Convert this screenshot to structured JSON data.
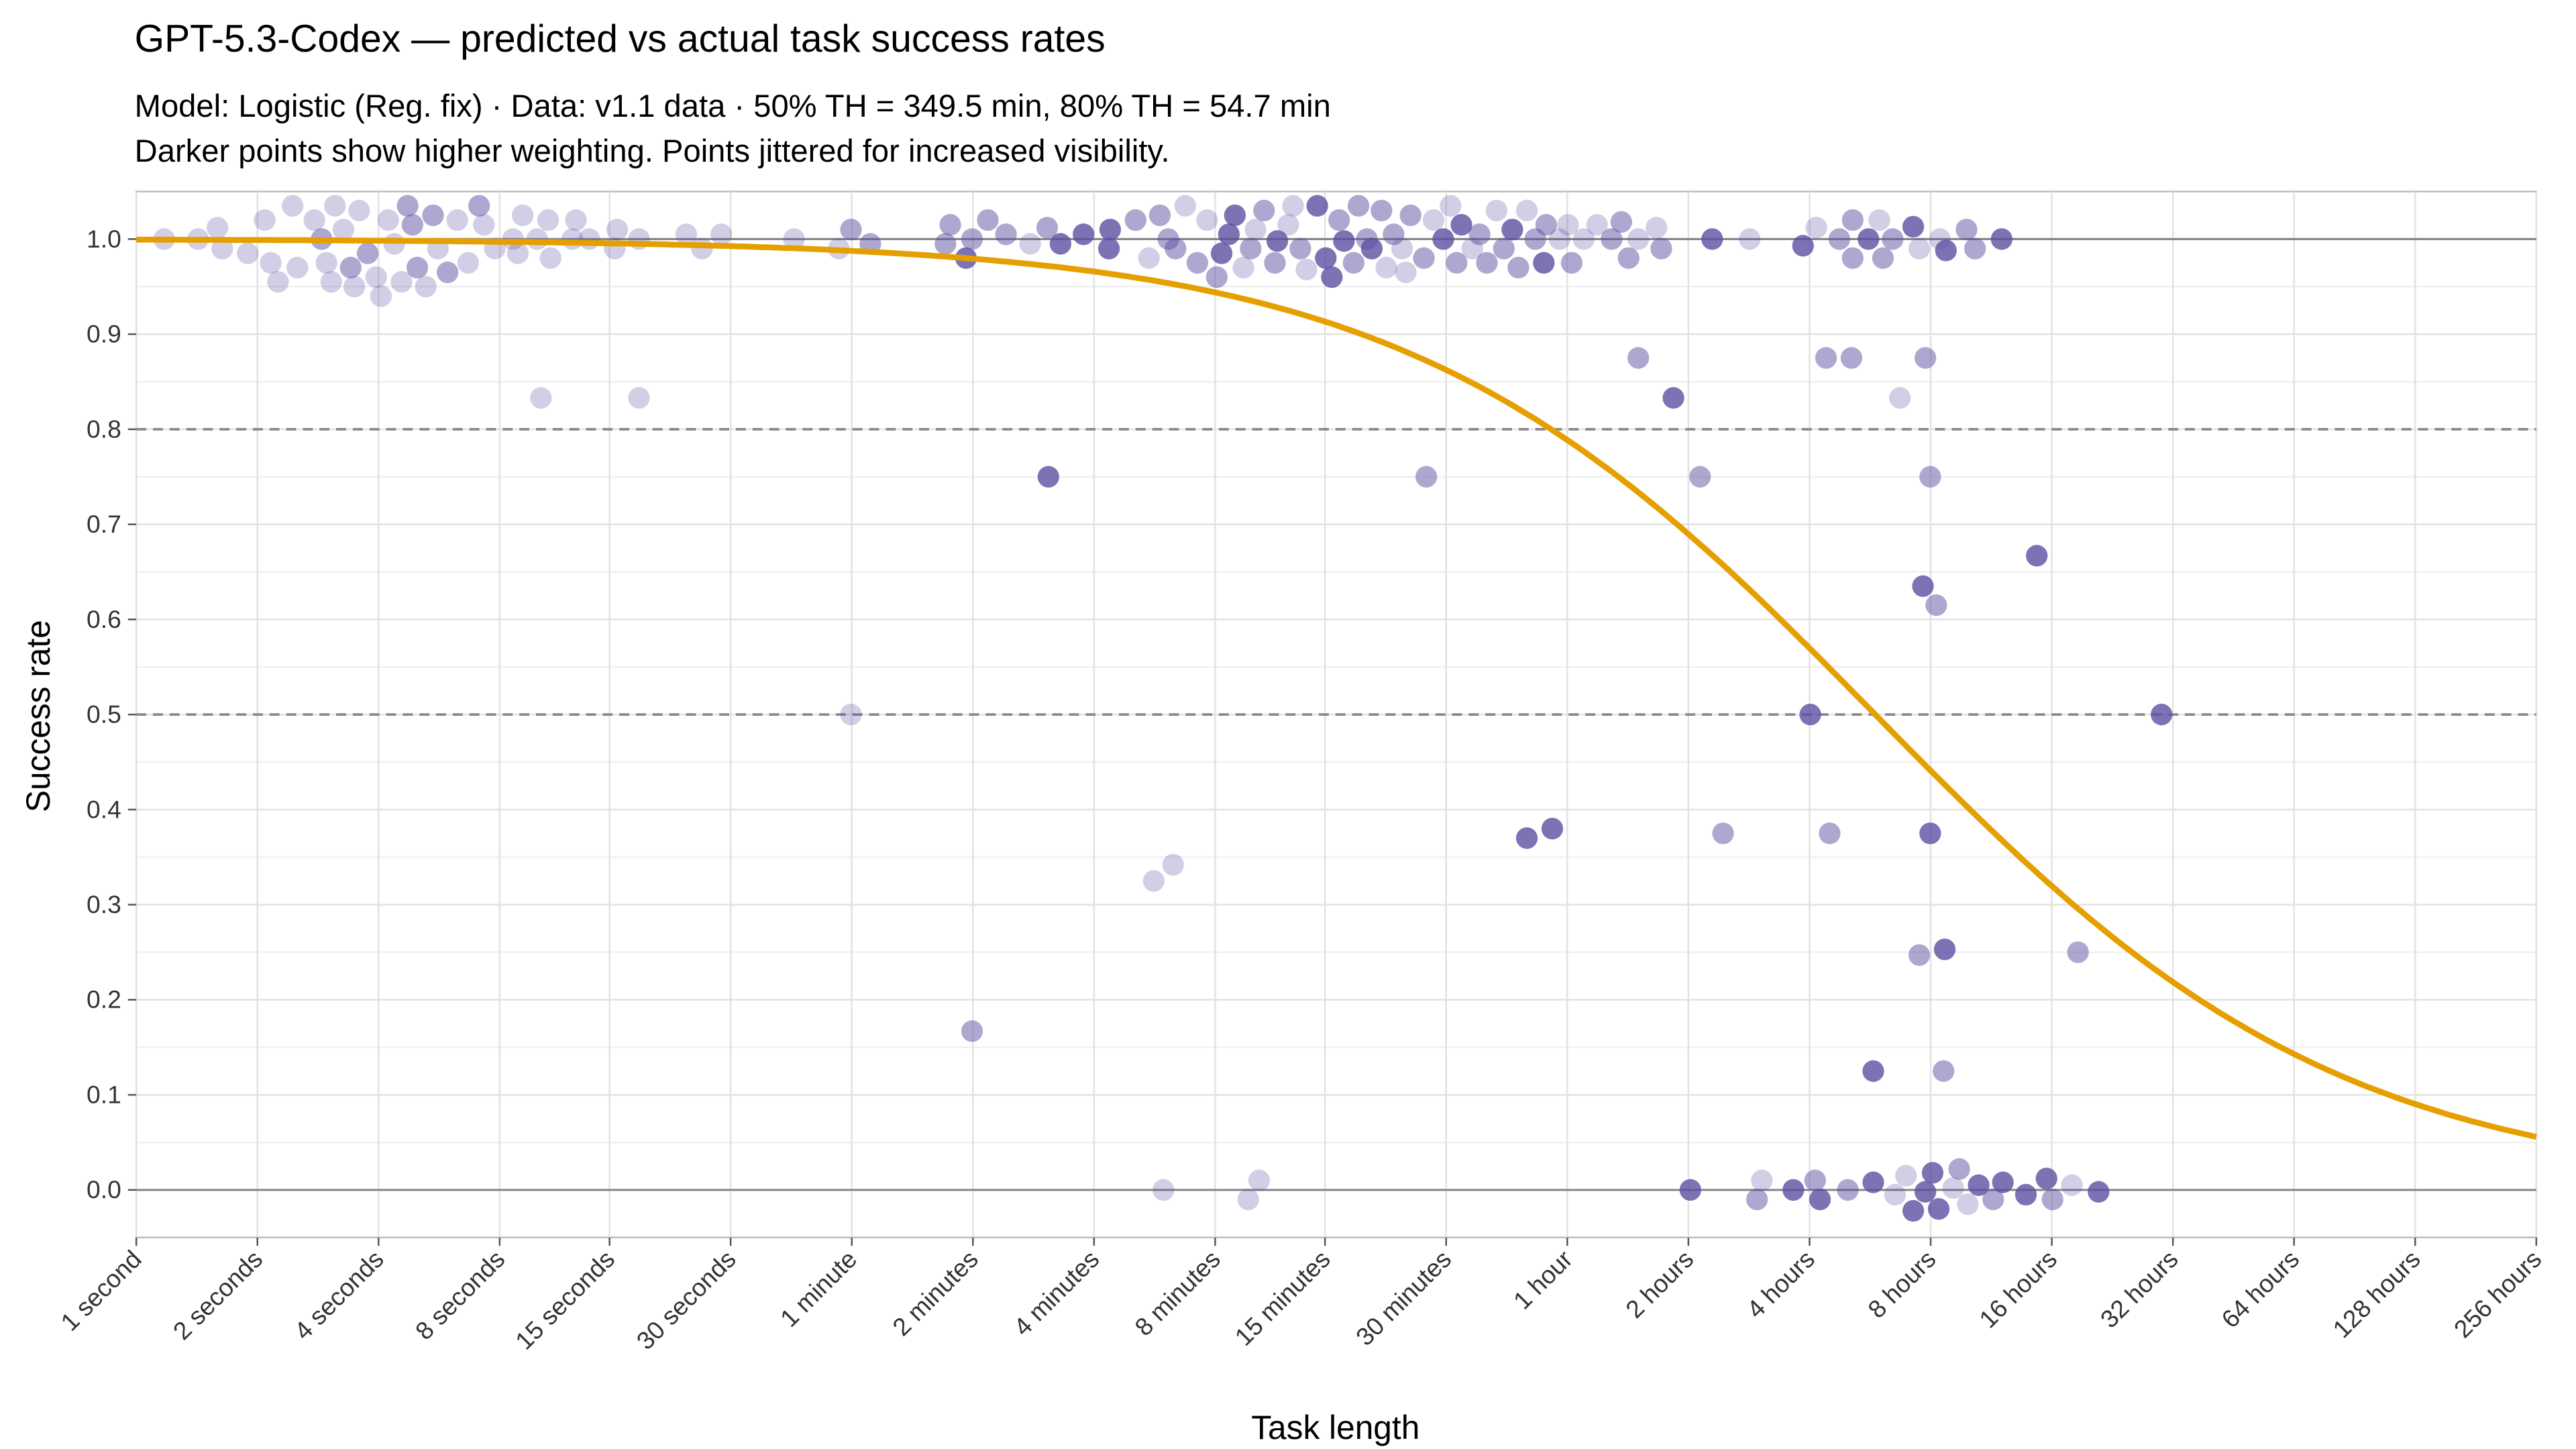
{
  "chart_data": {
    "type": "scatter",
    "title": "GPT-5.3-Codex — predicted vs actual task success rates",
    "subtitle_line1": "Model: Logistic (Reg. fix) · Data: v1.1 data · 50% TH = 349.5 min, 80% TH = 54.7 min",
    "subtitle_line2": "Darker points show higher weighting. Points jittered for increased visibility.",
    "xlabel": "Task length",
    "ylabel": "Success rate",
    "x_scale": "log2",
    "x_unit": "seconds",
    "xlim_seconds": [
      1,
      921600
    ],
    "ylim": [
      -0.05,
      1.05
    ],
    "x_ticks": [
      {
        "seconds": 1,
        "label": "1 second"
      },
      {
        "seconds": 2,
        "label": "2 seconds"
      },
      {
        "seconds": 4,
        "label": "4 seconds"
      },
      {
        "seconds": 8,
        "label": "8 seconds"
      },
      {
        "seconds": 15,
        "label": "15 seconds"
      },
      {
        "seconds": 30,
        "label": "30 seconds"
      },
      {
        "seconds": 60,
        "label": "1 minute"
      },
      {
        "seconds": 120,
        "label": "2 minutes"
      },
      {
        "seconds": 240,
        "label": "4 minutes"
      },
      {
        "seconds": 480,
        "label": "8 minutes"
      },
      {
        "seconds": 900,
        "label": "15 minutes"
      },
      {
        "seconds": 1800,
        "label": "30 minutes"
      },
      {
        "seconds": 3600,
        "label": "1 hour"
      },
      {
        "seconds": 7200,
        "label": "2 hours"
      },
      {
        "seconds": 14400,
        "label": "4 hours"
      },
      {
        "seconds": 28800,
        "label": "8 hours"
      },
      {
        "seconds": 57600,
        "label": "16 hours"
      },
      {
        "seconds": 115200,
        "label": "32 hours"
      },
      {
        "seconds": 230400,
        "label": "64 hours"
      },
      {
        "seconds": 460800,
        "label": "128 hours"
      },
      {
        "seconds": 921600,
        "label": "256 hours"
      }
    ],
    "y_ticks": [
      "0.0",
      "0.1",
      "0.2",
      "0.3",
      "0.4",
      "0.5",
      "0.6",
      "0.7",
      "0.8",
      "0.9",
      "1.0"
    ],
    "reference_lines": {
      "solid": [
        0,
        1
      ],
      "dashed": [
        0.5,
        0.8
      ]
    },
    "grid": true,
    "fit": {
      "model": "logistic",
      "th50_minutes": 349.5,
      "th80_minutes": 54.7,
      "color": "#E69F00"
    },
    "point_color": "#5E4FA2",
    "points": [
      [
        0.23,
        1.0,
        1
      ],
      [
        0.51,
        1.0,
        1
      ],
      [
        0.67,
        1.012,
        1
      ],
      [
        0.71,
        0.99,
        1
      ],
      [
        0.92,
        0.985,
        1
      ],
      [
        1.06,
        1.02,
        1
      ],
      [
        1.11,
        0.975,
        1
      ],
      [
        1.17,
        0.955,
        1
      ],
      [
        1.29,
        1.035,
        1
      ],
      [
        1.33,
        0.97,
        1
      ],
      [
        1.47,
        1.02,
        1
      ],
      [
        1.53,
        1.0,
        2
      ],
      [
        1.57,
        0.975,
        1
      ],
      [
        1.61,
        0.955,
        1
      ],
      [
        1.64,
        1.035,
        1
      ],
      [
        1.71,
        1.01,
        1
      ],
      [
        1.77,
        0.97,
        2
      ],
      [
        1.8,
        0.95,
        1
      ],
      [
        1.84,
        1.03,
        1
      ],
      [
        1.91,
        0.985,
        2
      ],
      [
        1.98,
        0.96,
        1
      ],
      [
        2.02,
        0.94,
        1
      ],
      [
        2.08,
        1.02,
        1
      ],
      [
        2.13,
        0.995,
        1
      ],
      [
        2.19,
        0.955,
        1
      ],
      [
        2.24,
        1.035,
        2
      ],
      [
        2.28,
        1.015,
        2
      ],
      [
        2.32,
        0.97,
        2
      ],
      [
        2.39,
        0.95,
        1
      ],
      [
        2.45,
        1.025,
        2
      ],
      [
        2.49,
        0.99,
        1
      ],
      [
        2.57,
        0.965,
        2
      ],
      [
        2.65,
        1.02,
        1
      ],
      [
        2.74,
        0.975,
        1
      ],
      [
        2.83,
        1.035,
        2
      ],
      [
        2.87,
        1.015,
        1
      ],
      [
        2.96,
        0.99,
        1
      ],
      [
        3.11,
        1.0,
        1
      ],
      [
        3.15,
        0.985,
        1
      ],
      [
        3.19,
        1.025,
        1
      ],
      [
        3.31,
        1.0,
        1
      ],
      [
        3.4,
        1.02,
        1
      ],
      [
        3.42,
        0.98,
        1
      ],
      [
        3.6,
        1.0,
        1
      ],
      [
        3.63,
        1.02,
        1
      ],
      [
        3.74,
        1.0,
        1
      ],
      [
        3.95,
        0.99,
        1
      ],
      [
        3.97,
        1.01,
        1
      ],
      [
        4.15,
        1.0,
        1
      ],
      [
        4.54,
        1.005,
        1
      ],
      [
        4.67,
        0.99,
        1
      ],
      [
        4.83,
        1.005,
        1
      ],
      [
        5.43,
        1.0,
        1
      ],
      [
        5.8,
        0.99,
        1
      ],
      [
        5.9,
        1.01,
        2
      ],
      [
        6.06,
        0.995,
        2
      ],
      [
        3.34,
        0.833,
        1
      ],
      [
        4.15,
        0.833,
        1
      ],
      [
        5.9,
        0.5,
        1
      ],
      [
        6.68,
        0.995,
        2
      ],
      [
        6.72,
        1.015,
        2
      ],
      [
        6.85,
        0.98,
        3
      ],
      [
        6.9,
        1.0,
        2
      ],
      [
        7.03,
        1.02,
        2
      ],
      [
        7.18,
        1.005,
        2
      ],
      [
        7.38,
        0.995,
        1
      ],
      [
        7.52,
        1.012,
        2
      ],
      [
        7.63,
        0.995,
        3
      ],
      [
        7.82,
        1.005,
        3
      ],
      [
        8.03,
        0.99,
        3
      ],
      [
        8.04,
        1.01,
        3
      ],
      [
        8.25,
        1.02,
        2
      ],
      [
        8.36,
        0.98,
        1
      ],
      [
        8.45,
        1.025,
        2
      ],
      [
        8.52,
        1.0,
        2
      ],
      [
        8.58,
        0.99,
        2
      ],
      [
        8.66,
        1.035,
        1
      ],
      [
        8.76,
        0.975,
        2
      ],
      [
        8.84,
        1.02,
        1
      ],
      [
        8.92,
        0.96,
        2
      ],
      [
        8.96,
        0.985,
        3
      ],
      [
        9.02,
        1.005,
        3
      ],
      [
        9.07,
        1.025,
        3
      ],
      [
        9.14,
        0.97,
        1
      ],
      [
        9.2,
        0.99,
        2
      ],
      [
        9.24,
        1.01,
        1
      ],
      [
        9.31,
        1.03,
        2
      ],
      [
        9.4,
        0.975,
        2
      ],
      [
        9.42,
        0.998,
        3
      ],
      [
        9.51,
        1.015,
        1
      ],
      [
        9.55,
        1.035,
        1
      ],
      [
        9.61,
        0.99,
        2
      ],
      [
        9.66,
        0.968,
        1
      ],
      [
        9.75,
        1.035,
        3
      ],
      [
        9.82,
        0.98,
        3
      ],
      [
        9.87,
        0.96,
        3
      ],
      [
        9.93,
        1.02,
        2
      ],
      [
        9.97,
        0.998,
        3
      ],
      [
        10.05,
        0.975,
        2
      ],
      [
        10.09,
        1.035,
        2
      ],
      [
        10.16,
        1.0,
        2
      ],
      [
        10.2,
        0.99,
        3
      ],
      [
        10.28,
        1.03,
        2
      ],
      [
        10.32,
        0.97,
        1
      ],
      [
        10.38,
        1.005,
        2
      ],
      [
        10.45,
        0.99,
        1
      ],
      [
        10.48,
        0.965,
        1
      ],
      [
        10.52,
        1.025,
        2
      ],
      [
        10.63,
        0.98,
        2
      ],
      [
        10.71,
        1.02,
        1
      ],
      [
        10.79,
        1.0,
        3
      ],
      [
        10.85,
        1.035,
        1
      ],
      [
        10.9,
        0.975,
        2
      ],
      [
        10.94,
        1.015,
        3
      ],
      [
        11.03,
        0.99,
        1
      ],
      [
        11.09,
        1.005,
        2
      ],
      [
        11.15,
        0.975,
        2
      ],
      [
        11.23,
        1.03,
        1
      ],
      [
        11.29,
        0.99,
        2
      ],
      [
        11.36,
        1.01,
        3
      ],
      [
        11.41,
        0.97,
        2
      ],
      [
        11.48,
        1.03,
        1
      ],
      [
        11.55,
        1.0,
        2
      ],
      [
        11.62,
        0.975,
        3
      ],
      [
        11.64,
        1.015,
        2
      ],
      [
        11.75,
        1.0,
        1
      ],
      [
        11.82,
        1.015,
        1
      ],
      [
        11.85,
        0.975,
        2
      ],
      [
        11.95,
        1.0,
        1
      ],
      [
        12.06,
        1.015,
        1
      ],
      [
        12.18,
        1.0,
        2
      ],
      [
        12.26,
        1.018,
        2
      ],
      [
        12.32,
        0.98,
        2
      ],
      [
        12.4,
        1.0,
        1
      ],
      [
        12.55,
        1.012,
        1
      ],
      [
        12.59,
        0.99,
        2
      ],
      [
        13.01,
        1.0,
        3
      ],
      [
        13.32,
        1.0,
        1
      ],
      [
        6.9,
        0.167,
        2
      ],
      [
        7.53,
        0.75,
        3
      ],
      [
        8.4,
        0.325,
        1
      ],
      [
        8.56,
        0.342,
        1
      ],
      [
        8.48,
        0.0,
        1
      ],
      [
        9.18,
        -0.01,
        1
      ],
      [
        9.27,
        0.01,
        1
      ],
      [
        10.65,
        0.75,
        2
      ],
      [
        11.48,
        0.37,
        3
      ],
      [
        11.69,
        0.38,
        3
      ],
      [
        12.4,
        0.875,
        2
      ],
      [
        12.69,
        0.833,
        3
      ],
      [
        12.91,
        0.75,
        2
      ],
      [
        13.1,
        0.375,
        2
      ],
      [
        12.83,
        0.0,
        3
      ],
      [
        13.38,
        -0.01,
        2
      ],
      [
        13.42,
        0.01,
        1
      ],
      [
        13.68,
        0.0,
        3
      ],
      [
        13.76,
        0.993,
        3
      ],
      [
        13.82,
        0.5,
        3
      ],
      [
        13.86,
        0.01,
        2
      ],
      [
        13.87,
        1.012,
        1
      ],
      [
        13.9,
        -0.01,
        3
      ],
      [
        13.95,
        0.875,
        2
      ],
      [
        13.98,
        0.375,
        2
      ],
      [
        14.06,
        1.0,
        2
      ],
      [
        14.13,
        0.0,
        2
      ],
      [
        14.16,
        0.875,
        2
      ],
      [
        14.17,
        1.02,
        2
      ],
      [
        14.17,
        0.98,
        2
      ],
      [
        14.3,
        1.0,
        3
      ],
      [
        14.34,
        0.125,
        3
      ],
      [
        14.34,
        0.008,
        3
      ],
      [
        14.39,
        1.02,
        1
      ],
      [
        14.42,
        0.98,
        2
      ],
      [
        14.5,
        1.0,
        2
      ],
      [
        14.52,
        -0.005,
        1
      ],
      [
        14.56,
        0.833,
        1
      ],
      [
        14.61,
        0.015,
        1
      ],
      [
        14.67,
        1.013,
        3
      ],
      [
        14.67,
        -0.022,
        3
      ],
      [
        14.72,
        0.99,
        1
      ],
      [
        14.72,
        0.247,
        2
      ],
      [
        14.75,
        0.635,
        3
      ],
      [
        14.77,
        0.875,
        2
      ],
      [
        14.81,
        0.75,
        2
      ],
      [
        14.81,
        0.375,
        3
      ],
      [
        14.77,
        -0.002,
        3
      ],
      [
        14.83,
        0.018,
        3
      ],
      [
        14.86,
        0.615,
        2
      ],
      [
        14.88,
        -0.02,
        3
      ],
      [
        14.89,
        1.0,
        1
      ],
      [
        14.92,
        0.125,
        2
      ],
      [
        14.93,
        0.253,
        3
      ],
      [
        14.94,
        0.988,
        3
      ],
      [
        15.0,
        0.002,
        1
      ],
      [
        15.05,
        0.022,
        2
      ],
      [
        15.11,
        1.01,
        2
      ],
      [
        15.12,
        -0.015,
        1
      ],
      [
        15.18,
        0.99,
        2
      ],
      [
        15.21,
        0.005,
        3
      ],
      [
        15.33,
        -0.01,
        2
      ],
      [
        15.4,
        1.0,
        3
      ],
      [
        15.41,
        0.008,
        3
      ],
      [
        15.6,
        -0.005,
        3
      ],
      [
        15.69,
        0.667,
        3
      ],
      [
        15.77,
        0.012,
        3
      ],
      [
        15.82,
        -0.01,
        2
      ],
      [
        15.98,
        0.005,
        1
      ],
      [
        16.03,
        0.25,
        2
      ],
      [
        16.2,
        -0.002,
        3
      ],
      [
        16.72,
        0.5,
        3
      ]
    ]
  }
}
